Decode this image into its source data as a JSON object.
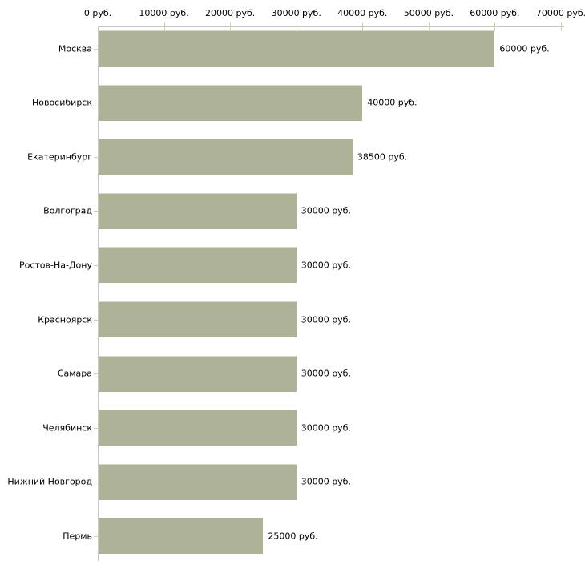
{
  "chart_data": {
    "type": "bar",
    "orientation": "horizontal",
    "title": "",
    "categories": [
      "Москва",
      "Новосибирск",
      "Екатеринбург",
      "Волгоград",
      "Ростов-На-Дону",
      "Красноярск",
      "Самара",
      "Челябинск",
      "Нижний Новгород",
      "Пермь"
    ],
    "values": [
      60000,
      40000,
      38500,
      30000,
      30000,
      30000,
      30000,
      30000,
      30000,
      25000
    ],
    "value_labels": [
      "60000 руб.",
      "40000 руб.",
      "38500 руб.",
      "30000 руб.",
      "30000 руб.",
      "30000 руб.",
      "30000 руб.",
      "30000 руб.",
      "30000 руб.",
      "25000 руб."
    ],
    "x_axis": {
      "position": "top",
      "min": 0,
      "max": 70000,
      "tick_step": 10000,
      "unit": "руб.",
      "tick_values": [
        0,
        10000,
        20000,
        30000,
        40000,
        50000,
        60000,
        70000
      ],
      "tick_labels": [
        "0 руб.",
        "10000 руб.",
        "20000 руб.",
        "30000 руб.",
        "40000 руб.",
        "50000 руб.",
        "60000 руб.",
        "70000 руб."
      ]
    },
    "grid": false,
    "legend": false,
    "colors": {
      "bar": "#aeb296",
      "bar_top_edge": "#d6d8ca",
      "axis_line": "#c6c6c6",
      "x_tick": "#d6d3a0",
      "category_tick": "#cfcfb4",
      "text": "#000000",
      "background": "#ffffff"
    }
  }
}
